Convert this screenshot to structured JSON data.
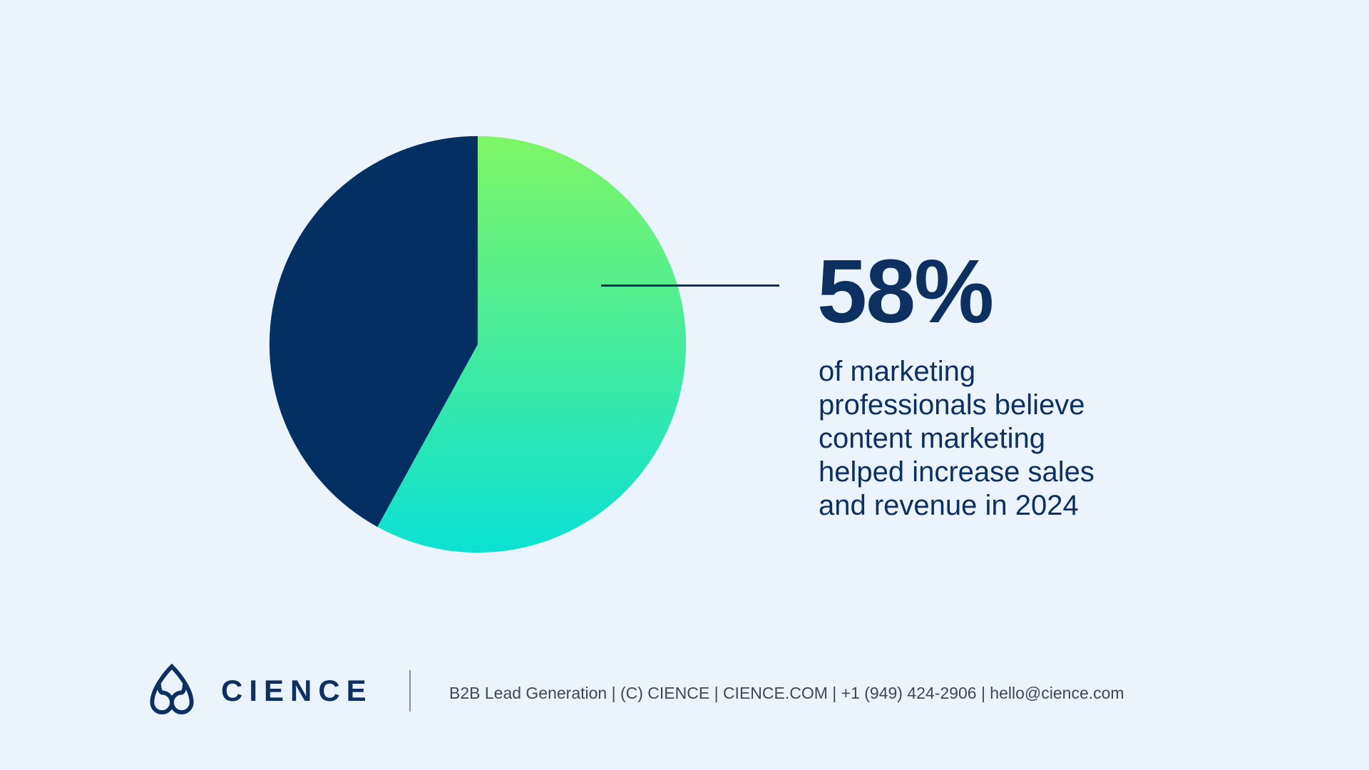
{
  "colors": {
    "background": "#ebf4fc",
    "navy": "#0d3061",
    "pie_navy": "#032f63",
    "green_start": "#7ff667",
    "green_end": "#0be1d3",
    "footer_text": "#3c485a",
    "divider": "#8093aa",
    "logo_fade": "#c3d0e0"
  },
  "chart_data": {
    "type": "pie",
    "values": [
      58,
      42
    ],
    "series_colors": [
      "green-teal-gradient",
      "navy"
    ],
    "green_gradient": [
      "#7ff667",
      "#0be1d3"
    ],
    "navy_slice_color": "#032f63",
    "start_angle_deg": 0,
    "direction": "clockwise",
    "highlighted_slice_value": 58,
    "legend": "none",
    "annotation": {
      "text": "58%",
      "connector": "horizontal-callout-line"
    }
  },
  "stat": {
    "value": "58%",
    "lines": [
      "of marketing",
      "professionals believe",
      "content marketing",
      "helped increase sales",
      "and revenue in 2024"
    ]
  },
  "footer": {
    "logo_icon": "cience-arch-logo",
    "wordmark": "CIENCE",
    "info": "B2B Lead Generation | (C) CIENCE | CIENCE.COM | +1 (949) 424-2906 | hello@cience.com"
  }
}
